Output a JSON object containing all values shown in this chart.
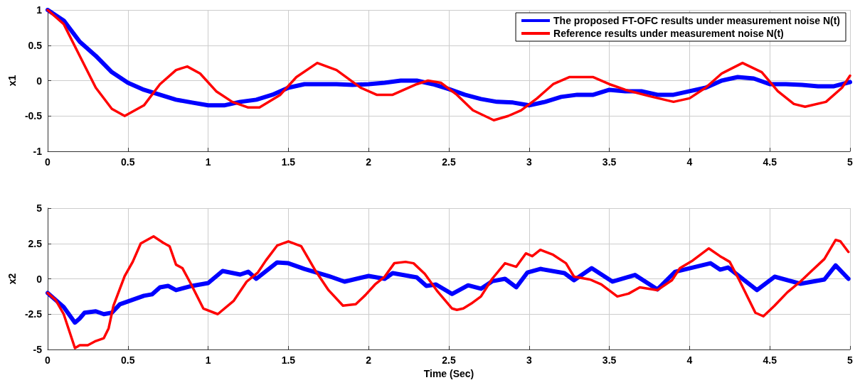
{
  "chart_data": [
    {
      "type": "line",
      "ylabel": "x1",
      "xlim": [
        0,
        5
      ],
      "xticks": [
        0,
        0.5,
        1,
        1.5,
        2,
        2.5,
        3,
        3.5,
        4,
        4.5,
        5
      ],
      "ylim": [
        -1,
        1
      ],
      "yticks": [
        -1,
        -0.5,
        0,
        0.5,
        1
      ],
      "grid": true,
      "legend": "top right",
      "marker": "none",
      "line_style": "solid",
      "series": [
        {
          "name": "The proposed FT-OFC results under measurement noise N(t)",
          "color": "#0000ff",
          "x": [
            0,
            0.1,
            0.2,
            0.3,
            0.4,
            0.5,
            0.6,
            0.7,
            0.8,
            0.9,
            1,
            1.1,
            1.2,
            1.3,
            1.4,
            1.5,
            1.6,
            1.7,
            1.8,
            1.9,
            2,
            2.1,
            2.2,
            2.3,
            2.4,
            2.5,
            2.6,
            2.7,
            2.8,
            2.9,
            3,
            3.1,
            3.2,
            3.3,
            3.4,
            3.5,
            3.6,
            3.7,
            3.8,
            3.9,
            4,
            4.1,
            4.2,
            4.3,
            4.4,
            4.5,
            4.6,
            4.7,
            4.8,
            4.9,
            5
          ],
          "values": [
            1,
            0.85,
            0.55,
            0.35,
            0.12,
            -0.03,
            -0.13,
            -0.2,
            -0.27,
            -0.31,
            -0.35,
            -0.35,
            -0.3,
            -0.27,
            -0.2,
            -0.1,
            -0.05,
            -0.05,
            -0.05,
            -0.06,
            -0.05,
            -0.03,
            0,
            0,
            -0.05,
            -0.12,
            -0.2,
            -0.26,
            -0.3,
            -0.31,
            -0.35,
            -0.3,
            -0.23,
            -0.2,
            -0.2,
            -0.13,
            -0.15,
            -0.15,
            -0.2,
            -0.2,
            -0.15,
            -0.1,
            0,
            0.05,
            0.03,
            -0.05,
            -0.05,
            -0.06,
            -0.08,
            -0.08,
            -0.02
          ]
        },
        {
          "name": "Reference results under measurement noise N(t)",
          "color": "#ff0000",
          "x": [
            0,
            0.1,
            0.2,
            0.3,
            0.4,
            0.48,
            0.6,
            0.7,
            0.8,
            0.87,
            0.95,
            1.05,
            1.15,
            1.25,
            1.32,
            1.45,
            1.55,
            1.68,
            1.8,
            1.95,
            2.05,
            2.15,
            2.3,
            2.37,
            2.45,
            2.55,
            2.65,
            2.78,
            2.87,
            2.95,
            3.05,
            3.15,
            3.25,
            3.4,
            3.5,
            3.6,
            3.75,
            3.9,
            4,
            4.1,
            4.2,
            4.33,
            4.45,
            4.55,
            4.65,
            4.72,
            4.85,
            4.95,
            5
          ],
          "values": [
            1,
            0.8,
            0.35,
            -0.1,
            -0.4,
            -0.5,
            -0.35,
            -0.05,
            0.15,
            0.2,
            0.1,
            -0.15,
            -0.3,
            -0.38,
            -0.38,
            -0.2,
            0.05,
            0.25,
            0.15,
            -0.1,
            -0.2,
            -0.2,
            -0.05,
            0,
            -0.03,
            -0.2,
            -0.42,
            -0.56,
            -0.5,
            -0.42,
            -0.25,
            -0.05,
            0.05,
            0.05,
            -0.05,
            -0.13,
            -0.22,
            -0.3,
            -0.25,
            -0.1,
            0.1,
            0.25,
            0.12,
            -0.15,
            -0.33,
            -0.37,
            -0.3,
            -0.1,
            0.07
          ]
        }
      ]
    },
    {
      "type": "line",
      "xlabel": "Time (Sec)",
      "ylabel": "x2",
      "xlim": [
        0,
        5
      ],
      "xticks": [
        0,
        0.5,
        1,
        1.5,
        2,
        2.5,
        3,
        3.5,
        4,
        4.5,
        5
      ],
      "ylim": [
        -5,
        5
      ],
      "yticks": [
        -5,
        -2.5,
        0,
        2.5,
        5
      ],
      "grid": true,
      "marker": "none",
      "line_style": "solid",
      "series": [
        {
          "color": "#0000ff",
          "x": [
            0,
            0.1,
            0.17,
            0.2,
            0.23,
            0.3,
            0.35,
            0.4,
            0.45,
            0.5,
            0.6,
            0.65,
            0.7,
            0.75,
            0.8,
            0.9,
            1,
            1.09,
            1.2,
            1.25,
            1.3,
            1.43,
            1.5,
            1.6,
            1.75,
            1.85,
            2,
            2.1,
            2.15,
            2.3,
            2.36,
            2.42,
            2.52,
            2.62,
            2.7,
            2.77,
            2.85,
            2.92,
            2.99,
            3.07,
            3.22,
            3.28,
            3.39,
            3.52,
            3.66,
            3.8,
            3.91,
            4.13,
            4.19,
            4.24,
            4.42,
            4.53,
            4.69,
            4.84,
            4.91,
            4.99
          ],
          "values": [
            -1,
            -2,
            -3.1,
            -2.8,
            -2.4,
            -2.3,
            -2.5,
            -2.4,
            -1.8,
            -1.6,
            -1.2,
            -1.1,
            -0.6,
            -0.5,
            -0.8,
            -0.5,
            -0.3,
            0.55,
            0.3,
            0.5,
            0,
            1.16,
            1.1,
            0.7,
            0.2,
            -0.2,
            0.2,
            0,
            0.4,
            0.1,
            -0.5,
            -0.4,
            -1.07,
            -0.46,
            -0.7,
            -0.17,
            0,
            -0.6,
            0.45,
            0.7,
            0.4,
            -0.1,
            0.75,
            -0.2,
            0.27,
            -0.75,
            0.5,
            1.1,
            0.65,
            0.8,
            -0.8,
            0.15,
            -0.35,
            -0.05,
            0.95,
            0
          ]
        },
        {
          "color": "#ff0000",
          "x": [
            0,
            0.05,
            0.1,
            0.17,
            0.2,
            0.25,
            0.3,
            0.35,
            0.38,
            0.41,
            0.48,
            0.53,
            0.58,
            0.66,
            0.72,
            0.76,
            0.8,
            0.84,
            0.89,
            0.97,
            1.06,
            1.16,
            1.24,
            1.31,
            1.36,
            1.43,
            1.5,
            1.58,
            1.67,
            1.75,
            1.84,
            1.92,
            1.98,
            2.04,
            2.1,
            2.16,
            2.23,
            2.28,
            2.35,
            2.43,
            2.52,
            2.55,
            2.59,
            2.64,
            2.7,
            2.77,
            2.85,
            2.92,
            2.98,
            3.02,
            3.07,
            3.15,
            3.23,
            3.28,
            3.38,
            3.45,
            3.55,
            3.62,
            3.69,
            3.8,
            3.89,
            3.94,
            4.02,
            4.12,
            4.19,
            4.25,
            4.31,
            4.41,
            4.46,
            4.53,
            4.61,
            4.69,
            4.76,
            4.84,
            4.91,
            4.94,
            4.99
          ],
          "values": [
            -1,
            -1.5,
            -2.5,
            -4.9,
            -4.7,
            -4.7,
            -4.4,
            -4.2,
            -3.5,
            -1.9,
            0.2,
            1.2,
            2.5,
            3,
            2.55,
            2.3,
            1,
            0.75,
            -0.3,
            -2.1,
            -2.5,
            -1.55,
            -0.2,
            0.45,
            1.3,
            2.35,
            2.65,
            2.3,
            0.55,
            -0.8,
            -1.9,
            -1.8,
            -1.15,
            -0.4,
            0.15,
            1.1,
            1.2,
            1.1,
            0.35,
            -0.9,
            -2.1,
            -2.2,
            -2.1,
            -1.75,
            -1.25,
            0,
            1.1,
            0.85,
            1.8,
            1.6,
            2.05,
            1.7,
            1.1,
            0.15,
            -0.05,
            -0.4,
            -1.25,
            -1.05,
            -0.6,
            -0.8,
            -0.1,
            0.75,
            1.3,
            2.15,
            1.6,
            1.2,
            -0.1,
            -2.4,
            -2.65,
            -1.9,
            -0.95,
            -0.2,
            0.55,
            1.4,
            2.75,
            2.65,
            1.9
          ]
        }
      ]
    }
  ]
}
